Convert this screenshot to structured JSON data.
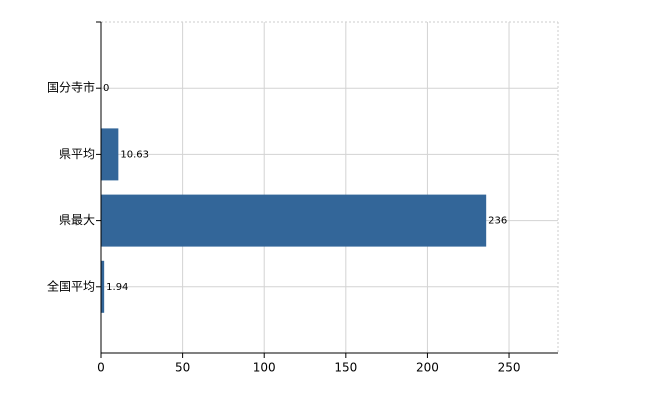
{
  "chart_data": {
    "type": "bar",
    "orientation": "horizontal",
    "categories": [
      "国分寺市",
      "県平均",
      "県最大",
      "全国平均"
    ],
    "values": [
      0,
      10.63,
      236,
      1.94
    ],
    "color": "#336699",
    "xlim": [
      0,
      280
    ],
    "xticks": [
      0,
      50,
      100,
      150,
      200,
      250
    ],
    "grid": true
  }
}
